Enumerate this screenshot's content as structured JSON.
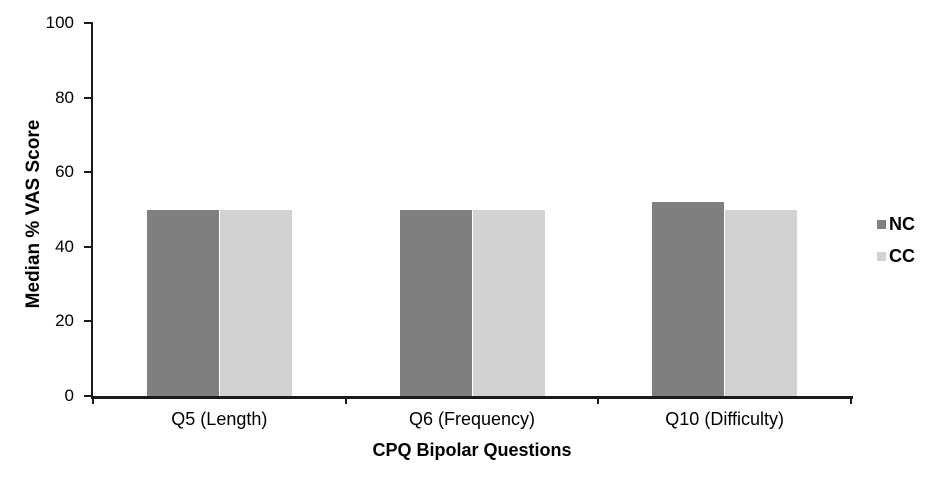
{
  "chart_data": {
    "type": "bar",
    "title": "",
    "xlabel": "CPQ Bipolar Questions",
    "ylabel": "Median % VAS Score",
    "categories": [
      "Q5 (Length)",
      "Q6 (Frequency)",
      "Q10 (Difficulty)"
    ],
    "series": [
      {
        "name": "NC",
        "color": "#7f7f7f",
        "values": [
          50,
          50,
          52
        ]
      },
      {
        "name": "CC",
        "color": "#d2d2d2",
        "values": [
          50,
          50,
          50
        ]
      }
    ],
    "ylim": [
      0,
      100
    ],
    "yticks": [
      0,
      20,
      40,
      60,
      80,
      100
    ],
    "grid": false,
    "legend_position": "right",
    "colors": {
      "axis": "#1a1a1a",
      "text": "#000000",
      "background": "#ffffff"
    }
  }
}
